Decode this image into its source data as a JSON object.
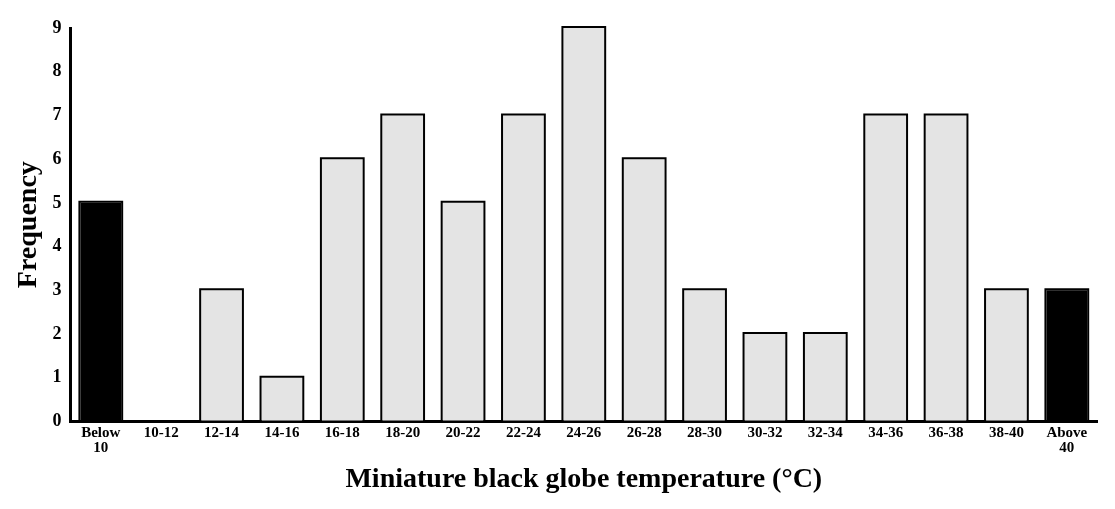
{
  "chart_data": {
    "type": "bar",
    "xlabel": "Miniature black globe temperature (°C)",
    "ylabel": "Frequency",
    "categories": [
      "Below 10",
      "10-12",
      "12-14",
      "14-16",
      "16-18",
      "18-20",
      "20-22",
      "22-24",
      "24-26",
      "26-28",
      "28-30",
      "30-32",
      "32-34",
      "34-36",
      "36-38",
      "38-40",
      "Above 40"
    ],
    "values": [
      5,
      0,
      3,
      1,
      6,
      7,
      5,
      7,
      9,
      6,
      3,
      2,
      2,
      7,
      7,
      3,
      3
    ],
    "colors": [
      "#000000",
      "#e4e4e4",
      "#e4e4e4",
      "#e4e4e4",
      "#e4e4e4",
      "#e4e4e4",
      "#e4e4e4",
      "#e4e4e4",
      "#e4e4e4",
      "#e4e4e4",
      "#e4e4e4",
      "#e4e4e4",
      "#e4e4e4",
      "#e4e4e4",
      "#e4e4e4",
      "#e4e4e4",
      "#000000"
    ],
    "ylim": [
      0,
      9
    ],
    "yticks": [
      0,
      1,
      2,
      3,
      4,
      5,
      6,
      7,
      8,
      9
    ],
    "grid": false,
    "legend": false
  }
}
